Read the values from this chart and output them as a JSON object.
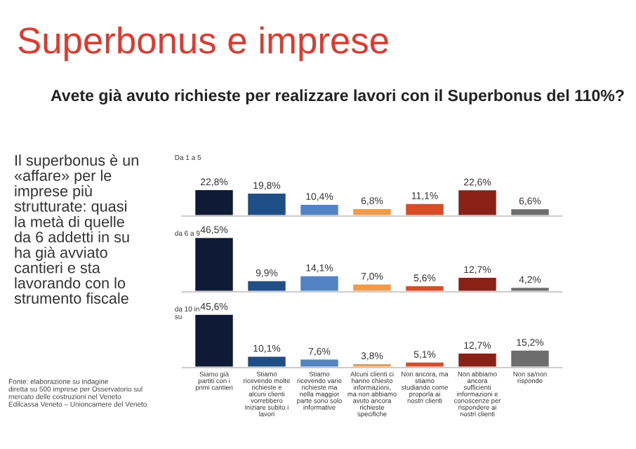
{
  "chart_data": [
    {
      "type": "bar",
      "title": "Superbonus e imprese",
      "subtitle": "Avete già avuto richieste per realizzare lavori con il Superbonus del 110%?",
      "ylabel": "Da 1 a 5",
      "annotations": [
        "Il superbonus è un\n«affare» per le\nimprese più\nstrutturate: quasi\nla metà di quelle\nda 6 addetti in su\nha già avviato\ncantieri e sta\nlavorando con lo\nstrumento fiscale",
        "Fonte: elaborazione su indagine\ndiretta su 500 imprese per Osservatorio sul\nmercato delle costruzioni nel Veneto\nEdilcassa Veneto – Unioncamere del Veneto"
      ],
      "categories": [
        null,
        null,
        null,
        null,
        null,
        null,
        null
      ],
      "values": [
        22.8,
        19.8,
        10.4,
        6.8,
        11.1,
        22.6,
        6.6
      ],
      "value_labels": [
        "22,8%",
        "19,8%",
        "10,4%",
        "6,8%",
        "11,1%",
        "22,6%",
        "6,6%"
      ],
      "colors": [
        "#0e1a36",
        "#1f4f86",
        "#5283c2",
        "#ef9b4c",
        "#d94d26",
        "#8a2119",
        "#6d6d6d"
      ],
      "tick_labels": false
    },
    {
      "type": "bar",
      "ylabel": "da 6 a 9",
      "categories": [
        null,
        null,
        null,
        null,
        null,
        null,
        null
      ],
      "values": [
        46.5,
        9.9,
        14.1,
        7.0,
        5.6,
        12.7,
        4.2
      ],
      "value_labels": [
        "46,5%",
        "9,9%",
        "14,1%",
        "7,0%",
        "5,6%",
        "12,7%",
        "4,2%"
      ],
      "colors": [
        "#0e1a36",
        "#1f4f86",
        "#5283c2",
        "#ef9b4c",
        "#d94d26",
        "#8a2119",
        "#6d6d6d"
      ],
      "tick_labels": false
    },
    {
      "type": "bar",
      "ylabel": "da 10 in\nsu",
      "categories": [
        "Siamo già\npartiti con i\nprimi cantieri",
        "Stiamo\nricevendo molte\nrichieste e\nalcuni clienti\nvorrebbero\niniziare subito i\nlavori",
        "Stiamo\nricevendo varie\nrichieste ma\nnella maggior\nparte sono solo\ninformative",
        "Alcuni clienti ci\nhanno chiesto\ninformazioni,\nma non abbiamo\navuto ancora\nrichieste\nspecifiche",
        "Non ancora, ma\nstiamo\nstudiando come\nproporla ai\nnostri clienti",
        "Non abbiamo\nancora\nsufficienti\ninformazioni e\nconoscenze per\nrispondere ai\nnostri clienti",
        "Non sa/non\nrisponde"
      ],
      "values": [
        45.6,
        10.1,
        7.6,
        3.8,
        5.1,
        12.7,
        15.2
      ],
      "value_labels": [
        "45,6%",
        "10,1%",
        "7,6%",
        "3,8%",
        "5,1%",
        "12,7%",
        "15,2%"
      ],
      "colors": [
        "#0e1a36",
        "#1f4f86",
        "#5283c2",
        "#ef9b4c",
        "#d94d26",
        "#8a2119",
        "#6d6d6d"
      ],
      "tick_labels": "x"
    }
  ]
}
